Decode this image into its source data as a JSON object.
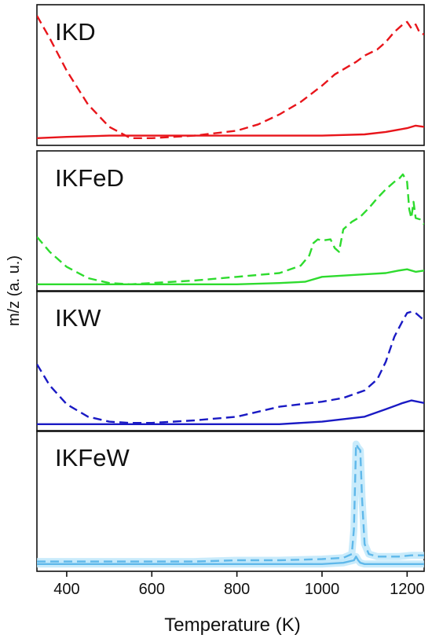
{
  "chart_data": {
    "type": "line",
    "xlabel": "Temperature (K)",
    "ylabel": "m/z (a. u.)",
    "xlim": [
      330,
      1240
    ],
    "xticks": [
      400,
      600,
      800,
      1000,
      1200
    ],
    "x_tick_labels": [
      "400",
      "600",
      "800",
      "1000",
      "1200"
    ],
    "grid": false,
    "line_styles": {
      "solid": "solid",
      "dashed": "dashed"
    },
    "panels": [
      {
        "label": "IKD",
        "color": "#e8151b",
        "ylim": [
          0,
          1.05
        ],
        "series": [
          {
            "style": "dashed",
            "x": [
              330,
              360,
              400,
              450,
              500,
              550,
              600,
              700,
              800,
              850,
              900,
              950,
              1000,
              1030,
              1050,
              1080,
              1100,
              1130,
              1150,
              1170,
              1190,
              1200,
              1210,
              1220,
              1230,
              1240
            ],
            "y": [
              1.0,
              0.82,
              0.56,
              0.29,
              0.11,
              0.02,
              0.02,
              0.04,
              0.08,
              0.13,
              0.21,
              0.31,
              0.44,
              0.53,
              0.57,
              0.63,
              0.68,
              0.73,
              0.79,
              0.87,
              0.93,
              0.95,
              0.9,
              0.93,
              0.86,
              0.85
            ]
          },
          {
            "style": "solid",
            "x": [
              330,
              400,
              500,
              600,
              700,
              800,
              900,
              1000,
              1100,
              1150,
              1200,
              1220,
              1240
            ],
            "y": [
              0.02,
              0.03,
              0.04,
              0.04,
              0.04,
              0.04,
              0.04,
              0.04,
              0.05,
              0.07,
              0.1,
              0.12,
              0.11
            ]
          }
        ]
      },
      {
        "label": "IKFeD",
        "color": "#2edb2e",
        "ylim": [
          0,
          1.05
        ],
        "series": [
          {
            "style": "dashed",
            "x": [
              330,
              360,
              400,
              450,
              500,
              550,
              600,
              700,
              800,
              900,
              950,
              970,
              980,
              990,
              1000,
              1020,
              1030,
              1040,
              1050,
              1070,
              1090,
              1110,
              1130,
              1150,
              1170,
              1180,
              1190,
              1200,
              1205,
              1210,
              1215,
              1220,
              1230,
              1240
            ],
            "y": [
              0.4,
              0.28,
              0.16,
              0.07,
              0.03,
              0.02,
              0.03,
              0.05,
              0.08,
              0.11,
              0.17,
              0.25,
              0.35,
              0.38,
              0.37,
              0.38,
              0.31,
              0.28,
              0.46,
              0.52,
              0.56,
              0.63,
              0.71,
              0.78,
              0.84,
              0.86,
              0.9,
              0.84,
              0.62,
              0.55,
              0.68,
              0.55,
              0.54,
              0.5
            ]
          },
          {
            "style": "solid",
            "x": [
              330,
              400,
              500,
              600,
              700,
              800,
              900,
              960,
              1000,
              1050,
              1100,
              1150,
              1180,
              1200,
              1220,
              1240
            ],
            "y": [
              0.02,
              0.02,
              0.02,
              0.02,
              0.02,
              0.02,
              0.03,
              0.04,
              0.08,
              0.09,
              0.1,
              0.11,
              0.13,
              0.14,
              0.12,
              0.13
            ]
          }
        ]
      },
      {
        "label": "IKW",
        "color": "#1a1ac4",
        "ylim": [
          0,
          1.05
        ],
        "series": [
          {
            "style": "dashed",
            "x": [
              330,
              360,
              400,
              450,
              500,
              550,
              600,
              700,
              800,
              850,
              900,
              950,
              1000,
              1050,
              1100,
              1130,
              1150,
              1170,
              1190,
              1200,
              1210,
              1220,
              1230,
              1240
            ],
            "y": [
              0.5,
              0.33,
              0.18,
              0.08,
              0.04,
              0.03,
              0.03,
              0.05,
              0.08,
              0.12,
              0.16,
              0.18,
              0.2,
              0.23,
              0.29,
              0.38,
              0.52,
              0.72,
              0.85,
              0.91,
              0.92,
              0.91,
              0.88,
              0.85
            ]
          },
          {
            "style": "solid",
            "x": [
              330,
              400,
              500,
              600,
              700,
              800,
              900,
              1000,
              1100,
              1150,
              1190,
              1210,
              1240
            ],
            "y": [
              0.02,
              0.02,
              0.02,
              0.02,
              0.02,
              0.02,
              0.02,
              0.04,
              0.08,
              0.14,
              0.19,
              0.21,
              0.19
            ]
          }
        ]
      },
      {
        "label": "IKFeW",
        "color": "#5fb8ea",
        "band_color": "#bfe7fa",
        "ylim": [
          0,
          1.05
        ],
        "series": [
          {
            "style": "dashed",
            "x": [
              330,
              400,
              500,
              600,
              700,
              800,
              900,
              1000,
              1050,
              1070,
              1075,
              1078,
              1080,
              1085,
              1090,
              1094,
              1100,
              1110,
              1130,
              1150,
              1180,
              1210,
              1240
            ],
            "y": [
              0.04,
              0.04,
              0.04,
              0.04,
              0.04,
              0.05,
              0.05,
              0.06,
              0.07,
              0.1,
              0.3,
              0.7,
              0.98,
              0.95,
              0.93,
              0.55,
              0.18,
              0.1,
              0.08,
              0.08,
              0.08,
              0.09,
              0.09
            ]
          },
          {
            "style": "solid",
            "x": [
              330,
              400,
              500,
              600,
              700,
              800,
              900,
              1000,
              1050,
              1075,
              1080,
              1085,
              1090,
              1100,
              1150,
              1240
            ],
            "y": [
              0.02,
              0.02,
              0.02,
              0.02,
              0.02,
              0.02,
              0.02,
              0.02,
              0.03,
              0.05,
              0.08,
              0.05,
              0.03,
              0.02,
              0.02,
              0.02
            ]
          }
        ]
      }
    ]
  }
}
